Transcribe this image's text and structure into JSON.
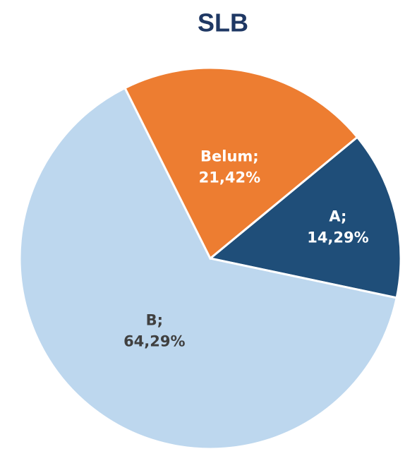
{
  "chart_data": {
    "type": "pie",
    "title": "SLB",
    "categories": [
      "A;",
      "B;",
      "Belum;"
    ],
    "values": [
      14.29,
      64.29,
      21.42
    ],
    "value_labels": [
      "14,29%",
      "64,29%",
      "21,42%"
    ],
    "colors": [
      "#1f4e79",
      "#bdd7ee",
      "#ed7d31"
    ]
  }
}
